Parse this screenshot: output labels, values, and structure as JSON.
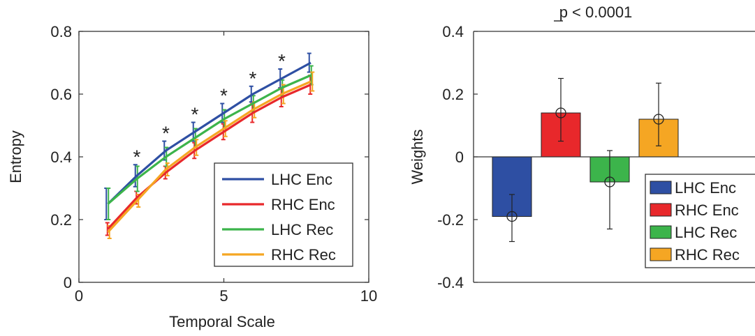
{
  "chart_data": [
    {
      "type": "line",
      "title": "",
      "xlabel": "Temporal Scale",
      "ylabel": "Entropy",
      "xlim": [
        0,
        10
      ],
      "ylim": [
        0,
        0.8
      ],
      "xticks": [
        "0",
        "5",
        "10"
      ],
      "yticks": [
        "0",
        "0.2",
        "0.4",
        "0.6",
        "0.8"
      ],
      "x": [
        1,
        2,
        3,
        4,
        5,
        6,
        7,
        8
      ],
      "series": [
        {
          "name": "LHC Enc",
          "color": "#2e4fa3",
          "values": [
            0.25,
            0.34,
            0.42,
            0.48,
            0.54,
            0.6,
            0.65,
            0.7
          ],
          "errors": [
            0.05,
            0.035,
            0.03,
            0.03,
            0.03,
            0.025,
            0.03,
            0.03
          ]
        },
        {
          "name": "RHC Enc",
          "color": "#e8282b",
          "values": [
            0.17,
            0.27,
            0.35,
            0.42,
            0.48,
            0.54,
            0.59,
            0.63
          ],
          "errors": [
            0.02,
            0.02,
            0.02,
            0.025,
            0.025,
            0.03,
            0.03,
            0.03
          ]
        },
        {
          "name": "LHC Rec",
          "color": "#3cb44b",
          "values": [
            0.25,
            0.33,
            0.4,
            0.46,
            0.52,
            0.57,
            0.62,
            0.66
          ],
          "errors": [
            0.05,
            0.04,
            0.03,
            0.03,
            0.03,
            0.025,
            0.025,
            0.03
          ]
        },
        {
          "name": "RHC Rec",
          "color": "#f5a623",
          "values": [
            0.16,
            0.26,
            0.36,
            0.43,
            0.49,
            0.55,
            0.6,
            0.64
          ],
          "errors": [
            0.02,
            0.02,
            0.02,
            0.025,
            0.025,
            0.025,
            0.03,
            0.03
          ]
        }
      ],
      "significance_marks": {
        "symbol": "*",
        "x": [
          2,
          3,
          4,
          5,
          6,
          7
        ]
      },
      "grid": false,
      "legend": "bottom-right"
    },
    {
      "type": "bar",
      "title": "p < 0.0001",
      "xlabel": "",
      "ylabel": "Weights",
      "ylim": [
        -0.4,
        0.4
      ],
      "yticks": [
        "-0.4",
        "-0.2",
        "0",
        "0.2",
        "0.4"
      ],
      "categories": [
        "LHC Enc",
        "RHC Enc",
        "LHC Rec",
        "RHC Rec"
      ],
      "values": [
        -0.19,
        0.14,
        -0.08,
        0.12
      ],
      "colors": [
        "#2e4fa3",
        "#e8282b",
        "#3cb44b",
        "#f5a623"
      ],
      "error_low": [
        -0.27,
        0.05,
        -0.23,
        0.035
      ],
      "error_high": [
        -0.12,
        0.25,
        0.02,
        0.235
      ],
      "grid": false,
      "legend": "right"
    }
  ]
}
